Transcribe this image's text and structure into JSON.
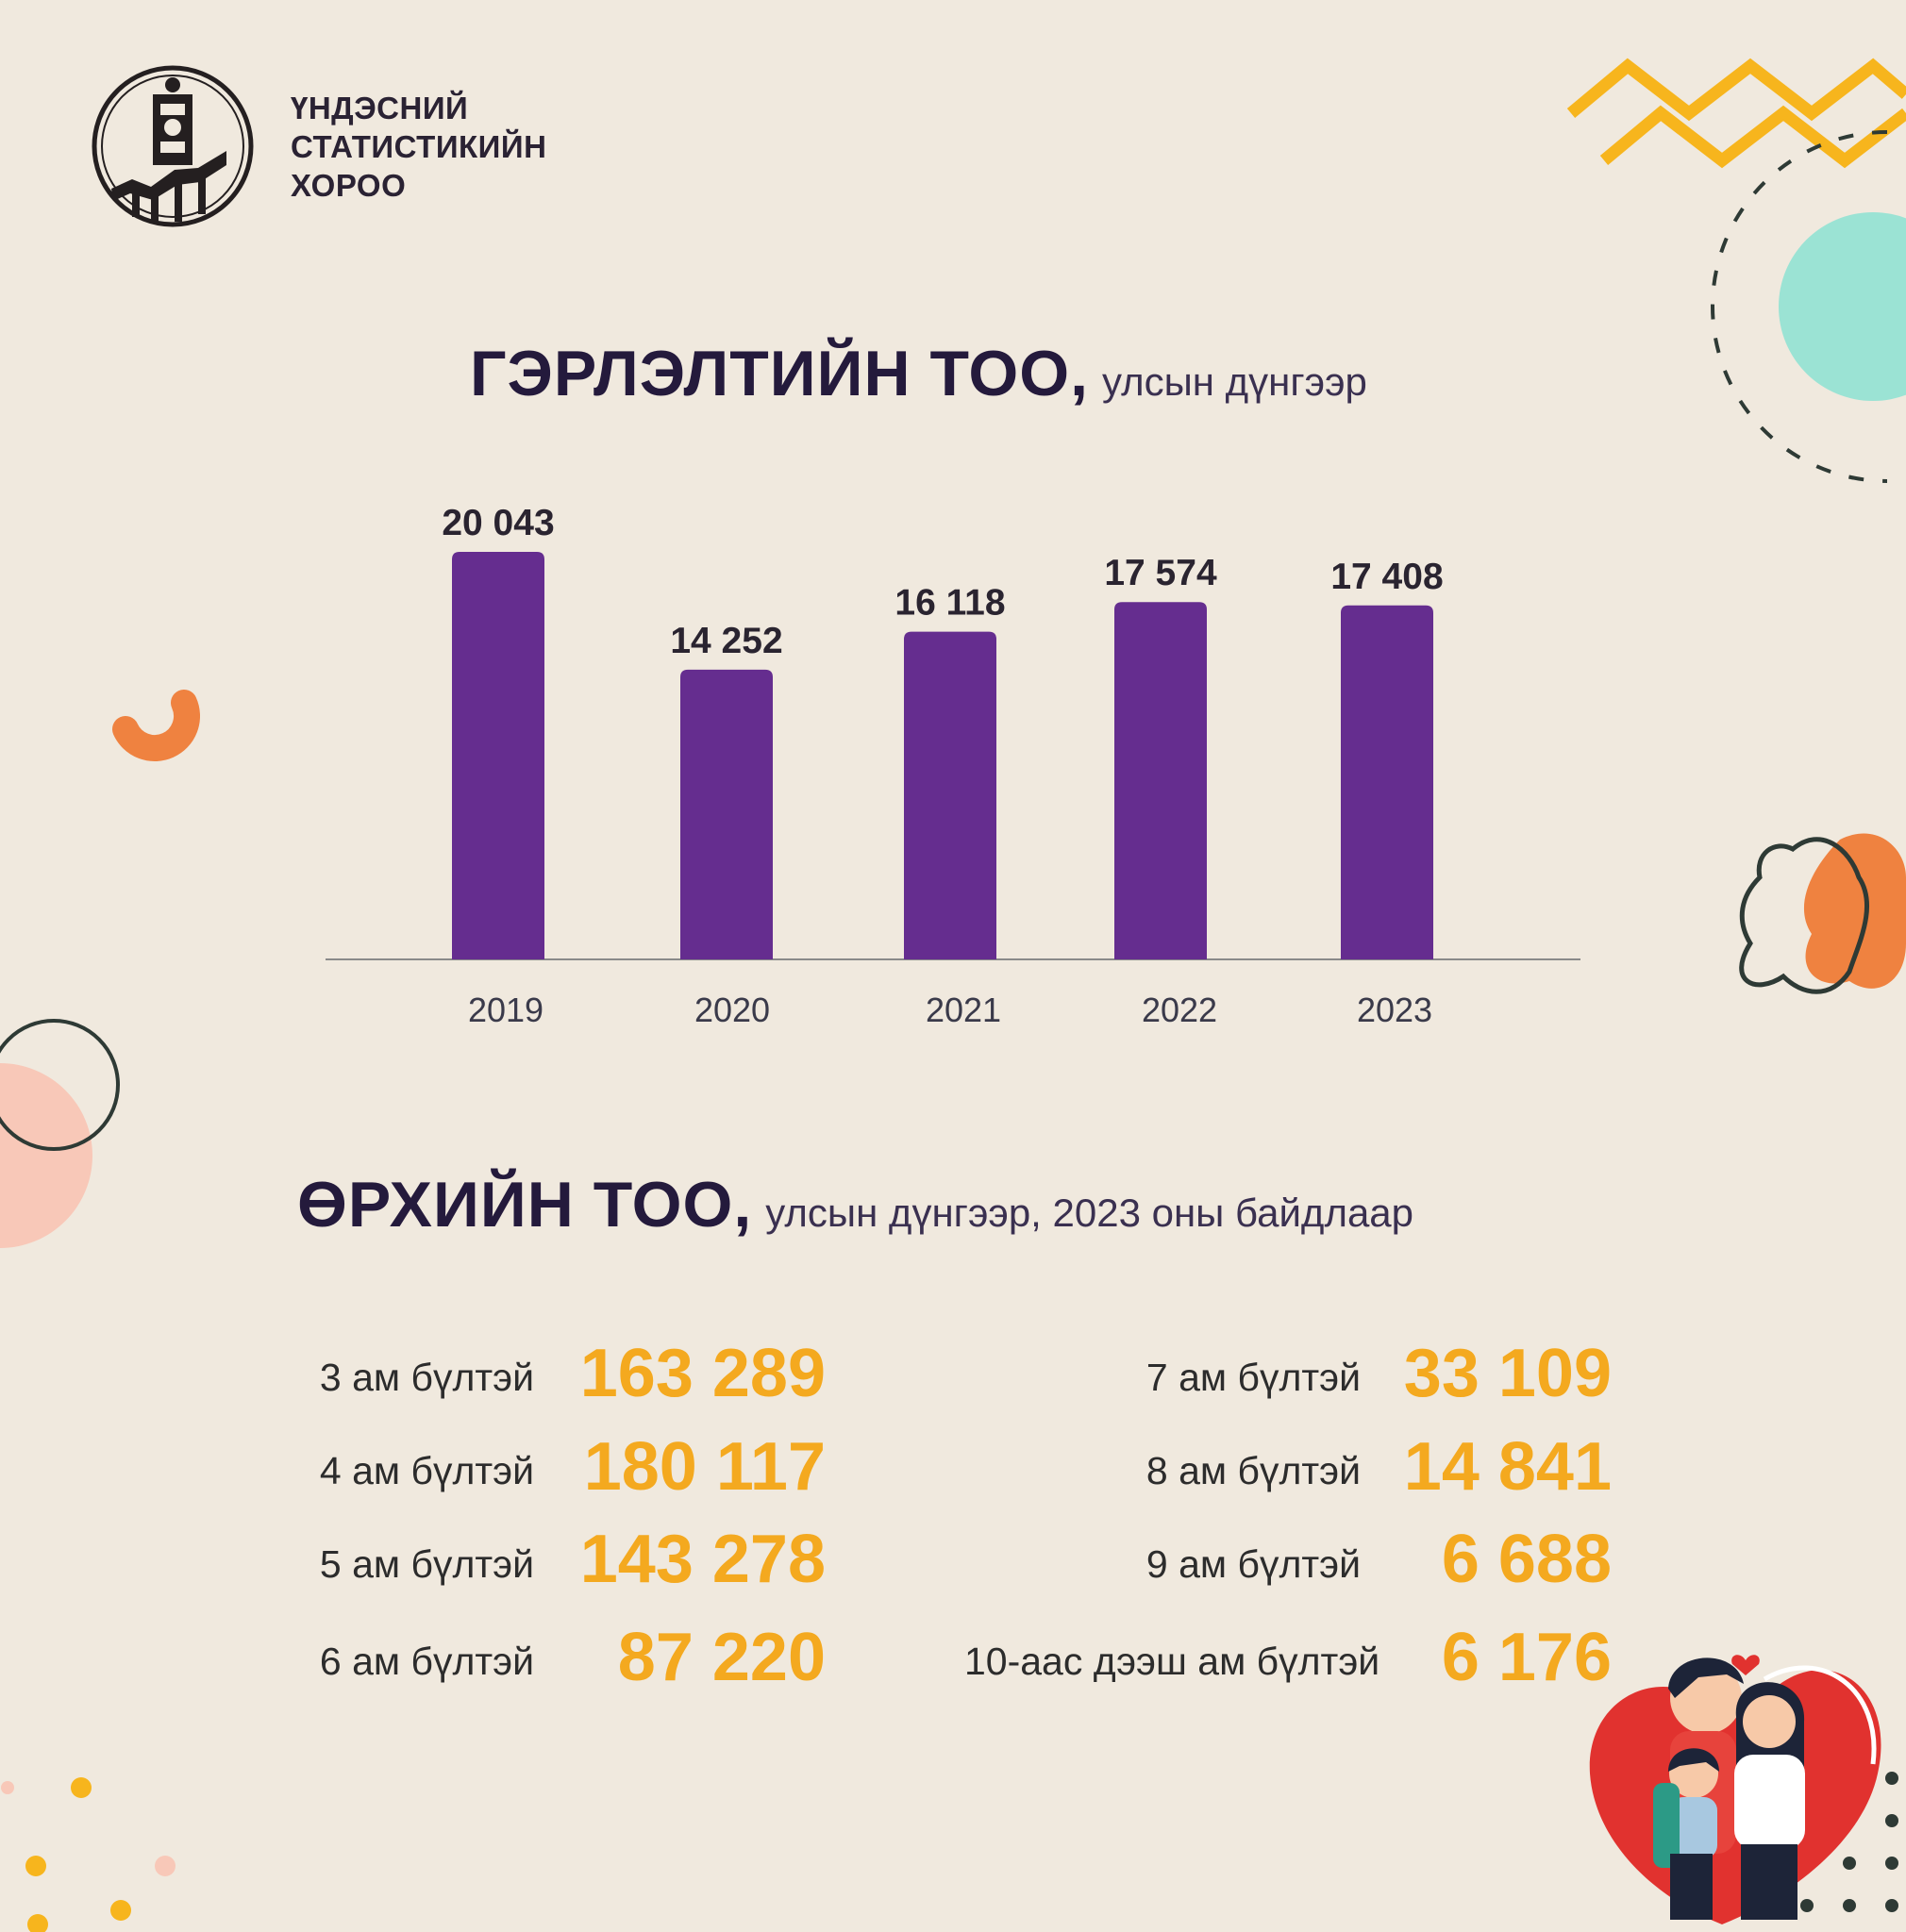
{
  "org": {
    "name_lines": [
      "ҮНДЭСНИЙ",
      "СТАТИСТИКИЙН",
      "ХОРОО"
    ]
  },
  "marriage": {
    "title": "ГЭРЛЭЛТИЙН ТОО,",
    "subtitle": "улсын дүнгээр"
  },
  "households": {
    "title": "ӨРХИЙН ТОО,",
    "subtitle": "улсын дүнгээр, 2023 оны байдлаар",
    "left": [
      {
        "label": "3 ам бүлтэй",
        "value": "163 289"
      },
      {
        "label": "4 ам бүлтэй",
        "value": "180 117"
      },
      {
        "label": "5 ам бүлтэй",
        "value": "143 278"
      },
      {
        "label": "6 ам бүлтэй",
        "value": "87 220"
      }
    ],
    "right": [
      {
        "label": "7 ам бүлтэй",
        "value": "33 109"
      },
      {
        "label": "8 ам бүлтэй",
        "value": "14 841"
      },
      {
        "label": "9 ам бүлтэй",
        "value": "6 688"
      },
      {
        "label": "10-аас дээш ам бүлтэй",
        "value": "6 176"
      }
    ]
  },
  "chart_data": {
    "type": "bar",
    "title": "ГЭРЛЭЛТИЙН ТОО,",
    "subtitle": "улсын дүнгээр",
    "categories": [
      "2019",
      "2020",
      "2021",
      "2022",
      "2023"
    ],
    "values": [
      20043,
      14252,
      16118,
      17574,
      17408
    ],
    "data_labels": [
      "20 043",
      "14 252",
      "16 118",
      "17 574",
      "17 408"
    ],
    "ylim": [
      0,
      20043
    ],
    "grid": false,
    "bar_color": "#652d8f"
  },
  "colors": {
    "background": "#f0e9de",
    "accent_yellow": "#f4a91f",
    "accent_orange": "#ef8240",
    "accent_teal": "#9be3d4",
    "accent_pink": "#f8c8b8",
    "dark": "#2e3a35"
  }
}
